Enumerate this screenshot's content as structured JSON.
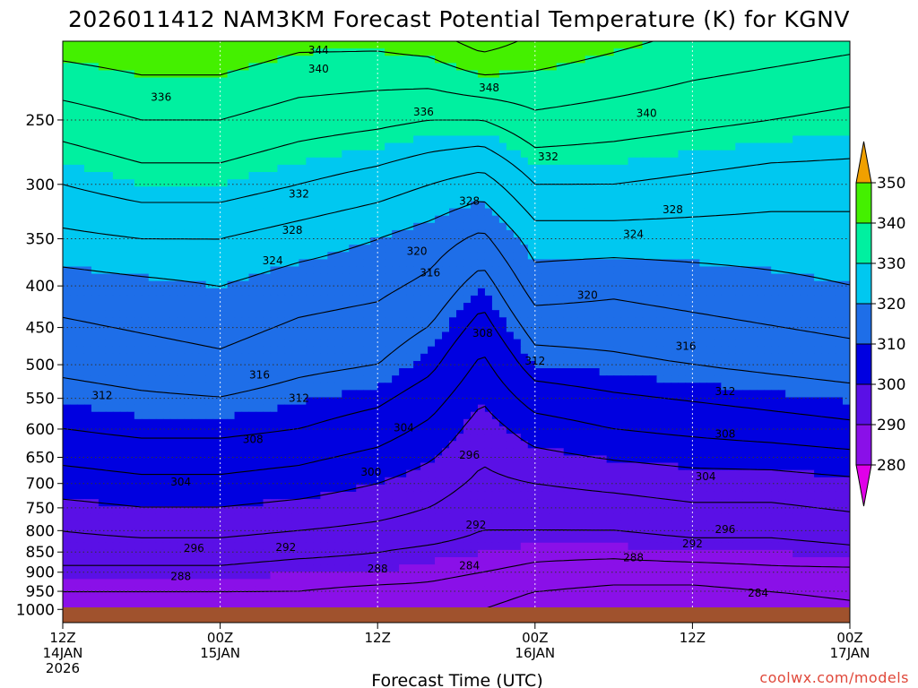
{
  "chart_data": {
    "type": "heatmap",
    "title": "2026011412 NAM3KM Forecast Potential Temperature (K) for KGNV",
    "xlabel": "Forecast Time (UTC)",
    "ylabel": "",
    "units": "K",
    "y_axis": {
      "quantity": "pressure (hPa)",
      "scale": "log",
      "range": [
        1025,
        200
      ],
      "ticks": [
        250,
        300,
        350,
        400,
        450,
        500,
        550,
        600,
        650,
        700,
        750,
        800,
        850,
        900,
        950,
        1000
      ]
    },
    "x_axis": {
      "range_hours": [
        0,
        60
      ],
      "ticks": [
        {
          "hour": 0,
          "line1": "12Z",
          "line2": "14JAN",
          "line3": "2026"
        },
        {
          "hour": 12,
          "line1": "00Z",
          "line2": "15JAN",
          "line3": ""
        },
        {
          "hour": 24,
          "line1": "12Z",
          "line2": "",
          "line3": ""
        },
        {
          "hour": 36,
          "line1": "00Z",
          "line2": "16JAN",
          "line3": ""
        },
        {
          "hour": 48,
          "line1": "12Z",
          "line2": "",
          "line3": ""
        },
        {
          "hour": 60,
          "line1": "00Z",
          "line2": "17JAN",
          "line3": ""
        }
      ]
    },
    "grid": true,
    "colorbar": {
      "placement": "right",
      "levels": [
        280,
        290,
        300,
        310,
        320,
        330,
        340,
        350
      ],
      "bands": [
        {
          "from": 270,
          "to": 280,
          "color": "#e000e8"
        },
        {
          "from": 280,
          "to": 290,
          "color": "#8a10e8"
        },
        {
          "from": 290,
          "to": 300,
          "color": "#5a10e6"
        },
        {
          "from": 300,
          "to": 310,
          "color": "#0000e0"
        },
        {
          "from": 310,
          "to": 320,
          "color": "#1e6ee8"
        },
        {
          "from": 320,
          "to": 330,
          "color": "#00c8f0"
        },
        {
          "from": 330,
          "to": 340,
          "color": "#00f0a0"
        },
        {
          "from": 340,
          "to": 350,
          "color": "#44f000"
        },
        {
          "from": 350,
          "to": 360,
          "color": "#f0f000"
        },
        {
          "from": 360,
          "to": 370,
          "color": "#f0a000"
        }
      ]
    },
    "contour_interval": 4,
    "profiles": {
      "pressure_hpa": [
        1000,
        950,
        900,
        850,
        800,
        700,
        600,
        500,
        400,
        350,
        300,
        250,
        200
      ],
      "columns": [
        {
          "hour": 0,
          "theta": [
            286,
            288,
            291,
            294,
            296,
            302,
            308,
            313,
            318,
            323,
            328,
            334,
            342
          ]
        },
        {
          "hour": 6,
          "theta": [
            286,
            288,
            291,
            294,
            297,
            303,
            309,
            314,
            319,
            324,
            330,
            336,
            343
          ]
        },
        {
          "hour": 12,
          "theta": [
            286,
            288,
            291,
            294,
            297,
            303,
            309,
            315,
            320,
            324,
            330,
            336,
            343
          ]
        },
        {
          "hour": 18,
          "theta": [
            286,
            288,
            290,
            293,
            296,
            302,
            308,
            313,
            318,
            322,
            328,
            334,
            341
          ]
        },
        {
          "hour": 24,
          "theta": [
            285,
            287,
            290,
            292,
            295,
            300,
            306,
            312,
            317,
            320,
            326,
            333,
            341
          ]
        },
        {
          "hour": 28,
          "theta": [
            285,
            287,
            289,
            291,
            294,
            298,
            303,
            309,
            315,
            318,
            324,
            332,
            342
          ]
        },
        {
          "hour": 32,
          "theta": [
            284,
            286,
            288,
            290,
            292,
            295,
            298,
            303,
            310,
            315,
            322,
            332,
            346
          ]
        },
        {
          "hour": 36,
          "theta": [
            282,
            284,
            287,
            289,
            292,
            296,
            302,
            310,
            318,
            322,
            328,
            335,
            343
          ]
        },
        {
          "hour": 42,
          "theta": [
            280,
            283,
            286,
            289,
            292,
            297,
            304,
            311,
            317,
            322,
            328,
            334,
            341
          ]
        },
        {
          "hour": 48,
          "theta": [
            280,
            283,
            286,
            290,
            293,
            298,
            305,
            312,
            318,
            322,
            327,
            333,
            339
          ]
        },
        {
          "hour": 54,
          "theta": [
            282,
            284,
            287,
            290,
            293,
            298,
            306,
            313,
            319,
            322,
            326,
            332,
            338
          ]
        },
        {
          "hour": 60,
          "theta": [
            283,
            285,
            287,
            291,
            294,
            299,
            307,
            314,
            320,
            322,
            326,
            331,
            337
          ]
        }
      ]
    },
    "contour_labels": [
      {
        "text": "344",
        "hour": 19.5,
        "p": 205
      },
      {
        "text": "340",
        "hour": 19.5,
        "p": 216
      },
      {
        "text": "348",
        "hour": 32.5,
        "p": 228
      },
      {
        "text": "336",
        "hour": 7.5,
        "p": 234
      },
      {
        "text": "336",
        "hour": 27.5,
        "p": 244
      },
      {
        "text": "340",
        "hour": 44.5,
        "p": 245
      },
      {
        "text": "332",
        "hour": 37.0,
        "p": 277
      },
      {
        "text": "332",
        "hour": 18.0,
        "p": 308
      },
      {
        "text": "328",
        "hour": 31.0,
        "p": 314
      },
      {
        "text": "328",
        "hour": 46.5,
        "p": 322
      },
      {
        "text": "328",
        "hour": 17.5,
        "p": 341
      },
      {
        "text": "324",
        "hour": 43.5,
        "p": 345
      },
      {
        "text": "320",
        "hour": 27.0,
        "p": 362
      },
      {
        "text": "324",
        "hour": 16.0,
        "p": 372
      },
      {
        "text": "316",
        "hour": 28.0,
        "p": 385
      },
      {
        "text": "320",
        "hour": 40.0,
        "p": 410
      },
      {
        "text": "308",
        "hour": 32.0,
        "p": 457
      },
      {
        "text": "312",
        "hour": 36.0,
        "p": 494
      },
      {
        "text": "316",
        "hour": 47.5,
        "p": 474
      },
      {
        "text": "316",
        "hour": 15.0,
        "p": 514
      },
      {
        "text": "312",
        "hour": 3.0,
        "p": 545
      },
      {
        "text": "312",
        "hour": 18.0,
        "p": 549
      },
      {
        "text": "312",
        "hour": 50.5,
        "p": 539
      },
      {
        "text": "304",
        "hour": 26.0,
        "p": 597
      },
      {
        "text": "308",
        "hour": 14.5,
        "p": 617
      },
      {
        "text": "308",
        "hour": 50.5,
        "p": 608
      },
      {
        "text": "296",
        "hour": 31.0,
        "p": 645
      },
      {
        "text": "300",
        "hour": 23.5,
        "p": 677
      },
      {
        "text": "304",
        "hour": 49.0,
        "p": 686
      },
      {
        "text": "304",
        "hour": 9.0,
        "p": 696
      },
      {
        "text": "292",
        "hour": 31.5,
        "p": 786
      },
      {
        "text": "296",
        "hour": 50.5,
        "p": 796
      },
      {
        "text": "296",
        "hour": 10.0,
        "p": 840
      },
      {
        "text": "292",
        "hour": 17.0,
        "p": 838
      },
      {
        "text": "292",
        "hour": 48.0,
        "p": 829
      },
      {
        "text": "288",
        "hour": 43.5,
        "p": 863
      },
      {
        "text": "284",
        "hour": 31.0,
        "p": 883
      },
      {
        "text": "288",
        "hour": 24.0,
        "p": 890
      },
      {
        "text": "288",
        "hour": 9.0,
        "p": 910
      },
      {
        "text": "284",
        "hour": 53.0,
        "p": 953
      }
    ]
  },
  "credit": "coolwx.com/models",
  "ground_color": "#a0522d"
}
